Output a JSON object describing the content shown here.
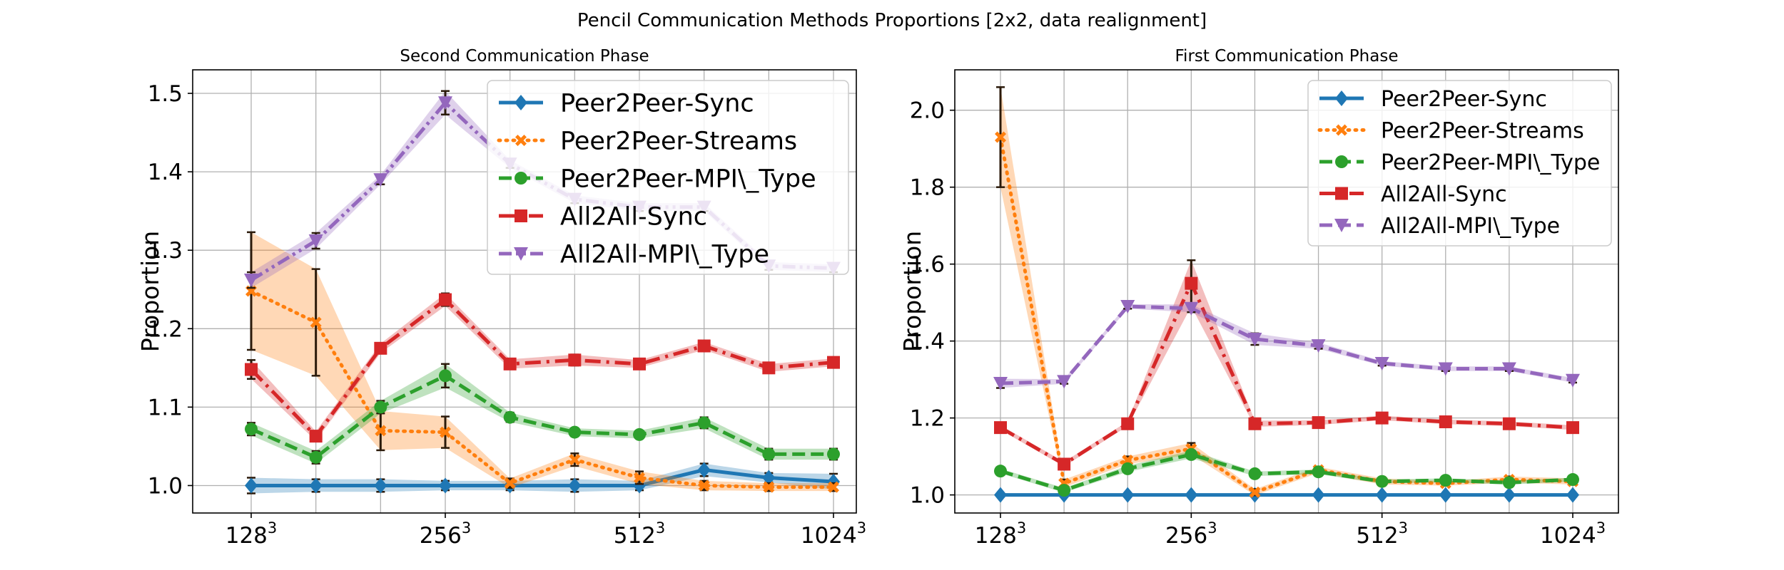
{
  "figure": {
    "title": "Pencil Communication Methods Proportions [2x2, data realignment]"
  },
  "chart_data": [
    {
      "type": "line",
      "title": "Second Communication Phase",
      "xlabel": "",
      "ylabel": "Proportion",
      "x": [
        128,
        160,
        202,
        256,
        320,
        404,
        512,
        640,
        806,
        1024
      ],
      "xticks": [
        {
          "value": 128,
          "base": "128",
          "exp": "3"
        },
        {
          "value": 256,
          "base": "256",
          "exp": "3"
        },
        {
          "value": 512,
          "base": "512",
          "exp": "3"
        },
        {
          "value": 1024,
          "base": "1024",
          "exp": "3"
        }
      ],
      "yticks": [
        "1.0",
        "1.1",
        "1.2",
        "1.3",
        "1.4",
        "1.5"
      ],
      "ylim": [
        0.965,
        1.53
      ],
      "grid": true,
      "legend_position": "upper-right",
      "series": [
        {
          "name": "Peer2Peer-Sync",
          "color": "#1f77b4",
          "marker": "diamond",
          "dash": "solid",
          "values": [
            1.0,
            1.0,
            1.0,
            1.0,
            1.0,
            1.0,
            1.0,
            1.02,
            1.01,
            1.005
          ],
          "err": [
            0.01,
            0.008,
            0.008,
            0.006,
            0.006,
            0.008,
            0.006,
            0.008,
            0.006,
            0.01
          ]
        },
        {
          "name": "Peer2Peer-Streams",
          "color": "#ff7f0e",
          "marker": "x",
          "dash": "dotted",
          "values": [
            1.248,
            1.208,
            1.07,
            1.068,
            1.003,
            1.033,
            1.01,
            1.0,
            0.998,
            0.998
          ],
          "err": [
            0.075,
            0.068,
            0.025,
            0.02,
            0.006,
            0.008,
            0.008,
            0.006,
            0.005,
            0.005
          ]
        },
        {
          "name": "Peer2Peer-MPI\\_Type",
          "color": "#2ca02c",
          "marker": "circle",
          "dash": "dashed",
          "values": [
            1.072,
            1.036,
            1.1,
            1.14,
            1.087,
            1.068,
            1.065,
            1.08,
            1.04,
            1.04
          ],
          "err": [
            0.008,
            0.008,
            0.008,
            0.015,
            0.006,
            0.005,
            0.005,
            0.007,
            0.007,
            0.007
          ]
        },
        {
          "name": "All2All-Sync",
          "color": "#d62728",
          "marker": "square",
          "dash": "dashdot",
          "values": [
            1.148,
            1.063,
            1.175,
            1.237,
            1.155,
            1.16,
            1.155,
            1.178,
            1.15,
            1.157
          ],
          "err": [
            0.012,
            0.006,
            0.006,
            0.008,
            0.006,
            0.007,
            0.005,
            0.005,
            0.005,
            0.005
          ]
        },
        {
          "name": "All2All-MPI\\_Type",
          "color": "#9467bd",
          "marker": "triangle-down",
          "dash": "dashdotdot",
          "values": [
            1.262,
            1.312,
            1.39,
            1.488,
            1.41,
            1.365,
            1.355,
            1.355,
            1.28,
            1.277
          ],
          "err": [
            0.01,
            0.01,
            0.006,
            0.015,
            0.005,
            0.005,
            0.005,
            0.005,
            0.005,
            0.005
          ]
        }
      ]
    },
    {
      "type": "line",
      "title": "First Communication Phase",
      "xlabel": "",
      "ylabel": "Proportion",
      "x": [
        128,
        160,
        202,
        256,
        320,
        404,
        512,
        640,
        806,
        1024
      ],
      "xticks": [
        {
          "value": 128,
          "base": "128",
          "exp": "3"
        },
        {
          "value": 256,
          "base": "256",
          "exp": "3"
        },
        {
          "value": 512,
          "base": "512",
          "exp": "3"
        },
        {
          "value": 1024,
          "base": "1024",
          "exp": "3"
        }
      ],
      "yticks": [
        "1.0",
        "1.2",
        "1.4",
        "1.6",
        "1.8",
        "2.0"
      ],
      "ylim": [
        0.953,
        2.105
      ],
      "grid": true,
      "legend_position": "upper-right",
      "series": [
        {
          "name": "Peer2Peer-Sync",
          "color": "#1f77b4",
          "marker": "diamond",
          "dash": "solid",
          "values": [
            1.0,
            1.0,
            1.0,
            1.0,
            1.0,
            1.0,
            1.0,
            1.0,
            1.0,
            1.0
          ],
          "err": [
            0.003,
            0.003,
            0.003,
            0.003,
            0.003,
            0.003,
            0.003,
            0.003,
            0.003,
            0.003
          ]
        },
        {
          "name": "Peer2Peer-Streams",
          "color": "#ff7f0e",
          "marker": "x",
          "dash": "dotted",
          "values": [
            1.93,
            1.03,
            1.09,
            1.12,
            1.007,
            1.065,
            1.035,
            1.03,
            1.04,
            1.035
          ],
          "err": [
            0.13,
            0.01,
            0.01,
            0.015,
            0.008,
            0.008,
            0.008,
            0.006,
            0.008,
            0.008
          ]
        },
        {
          "name": "Peer2Peer-MPI\\_Type",
          "color": "#2ca02c",
          "marker": "circle",
          "dash": "dashed",
          "values": [
            1.062,
            1.012,
            1.068,
            1.105,
            1.055,
            1.06,
            1.035,
            1.038,
            1.032,
            1.04
          ],
          "err": [
            0.006,
            0.006,
            0.008,
            0.01,
            0.006,
            0.006,
            0.005,
            0.005,
            0.005,
            0.005
          ]
        },
        {
          "name": "All2All-Sync",
          "color": "#d62728",
          "marker": "square",
          "dash": "dashdot",
          "values": [
            1.175,
            1.08,
            1.185,
            1.55,
            1.185,
            1.188,
            1.2,
            1.19,
            1.185,
            1.175
          ],
          "err": [
            0.006,
            0.006,
            0.006,
            0.06,
            0.008,
            0.006,
            0.006,
            0.006,
            0.006,
            0.006
          ]
        },
        {
          "name": "All2All-MPI\\_Type",
          "color": "#9467bd",
          "marker": "triangle-down",
          "dash": "dashed",
          "values": [
            1.29,
            1.295,
            1.49,
            1.485,
            1.405,
            1.388,
            1.342,
            1.328,
            1.328,
            1.298
          ],
          "err": [
            0.012,
            0.006,
            0.006,
            0.01,
            0.015,
            0.008,
            0.006,
            0.006,
            0.006,
            0.006
          ]
        }
      ]
    }
  ]
}
